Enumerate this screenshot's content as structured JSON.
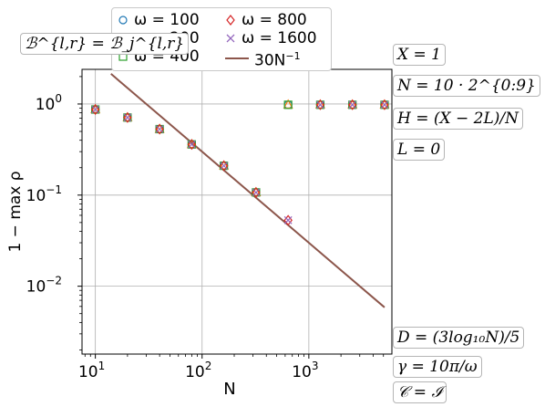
{
  "chart_data": {
    "type": "scatter",
    "xscale": "log",
    "yscale": "log",
    "xlim": [
      7.5,
      6000
    ],
    "ylim": [
      0.0018,
      2.4
    ],
    "xlabel": "N",
    "ylabel": "1 − max ρ",
    "xticks": [
      {
        "value": 10,
        "base": "10",
        "exp": "1"
      },
      {
        "value": 100,
        "base": "10",
        "exp": "2"
      },
      {
        "value": 1000,
        "base": "10",
        "exp": "3"
      }
    ],
    "yticks": [
      {
        "value": 0.01,
        "base": "10",
        "exp": "−2"
      },
      {
        "value": 0.1,
        "base": "10",
        "exp": "−1"
      },
      {
        "value": 1,
        "base": "10",
        "exp": "0"
      }
    ],
    "grid": true,
    "legend_position": "top-center",
    "series": [
      {
        "name": "ω = 100",
        "marker": "circle",
        "color": "#1f77b4",
        "x": [
          10,
          20,
          40,
          80,
          160,
          320,
          640,
          1280,
          2560,
          5120
        ],
        "y": [
          0.87,
          0.71,
          0.53,
          0.36,
          0.21,
          0.107,
          0.98,
          0.98,
          0.98,
          0.98
        ]
      },
      {
        "name": "ω = 200",
        "marker": "triangle",
        "color": "#ff7f0e",
        "x": [
          10,
          20,
          40,
          80,
          160,
          320,
          640,
          1280,
          2560,
          5120
        ],
        "y": [
          0.87,
          0.71,
          0.53,
          0.36,
          0.21,
          0.107,
          0.98,
          0.98,
          0.98,
          0.98
        ]
      },
      {
        "name": "ω = 400",
        "marker": "square",
        "color": "#2ca02c",
        "x": [
          10,
          20,
          40,
          80,
          160,
          320,
          640,
          1280,
          2560,
          5120
        ],
        "y": [
          0.87,
          0.71,
          0.53,
          0.36,
          0.21,
          0.107,
          0.98,
          0.98,
          0.98,
          0.98
        ]
      },
      {
        "name": "ω = 800",
        "marker": "diamond",
        "color": "#d62728",
        "x": [
          10,
          20,
          40,
          80,
          160,
          320,
          640,
          1280,
          2560,
          5120
        ],
        "y": [
          0.87,
          0.71,
          0.53,
          0.36,
          0.21,
          0.107,
          0.053,
          0.98,
          0.98,
          0.98
        ]
      },
      {
        "name": "ω = 1600",
        "marker": "x",
        "color": "#9467bd",
        "x": [
          10,
          20,
          40,
          80,
          160,
          320,
          640,
          1280,
          2560,
          5120
        ],
        "y": [
          0.87,
          0.71,
          0.53,
          0.36,
          0.21,
          0.107,
          0.053,
          0.98,
          0.98,
          0.98
        ]
      }
    ],
    "reference_line": {
      "name": "30N",
      "name_exp": "−1",
      "color": "#8c564b",
      "coef": 30,
      "x": [
        14,
        5120
      ]
    }
  },
  "legend": {
    "items": [
      {
        "label": "ω = 100",
        "marker": "circle",
        "color": "#1f77b4"
      },
      {
        "label": "ω = 800",
        "marker": "diamond",
        "color": "#d62728"
      },
      {
        "label": "ω = 200",
        "marker": "triangle",
        "color": "#ff7f0e"
      },
      {
        "label": "ω = 1600",
        "marker": "x",
        "color": "#9467bd"
      },
      {
        "label": "ω = 400",
        "marker": "square",
        "color": "#2ca02c"
      }
    ],
    "line_label": "30N",
    "line_label_exp": "−1"
  },
  "annotations": {
    "top_left": "ℬ^{l,r} = ℬ_j^{l,r}",
    "right_top": [
      "X = 1",
      "N = 10 · 2^{0:9}",
      "H = (X − 2L)/N",
      "L = 0"
    ],
    "right_bottom": [
      "D = (3log₁₀N)/5",
      "γ = 10π/ω",
      "𝒞 = ℐ"
    ]
  }
}
